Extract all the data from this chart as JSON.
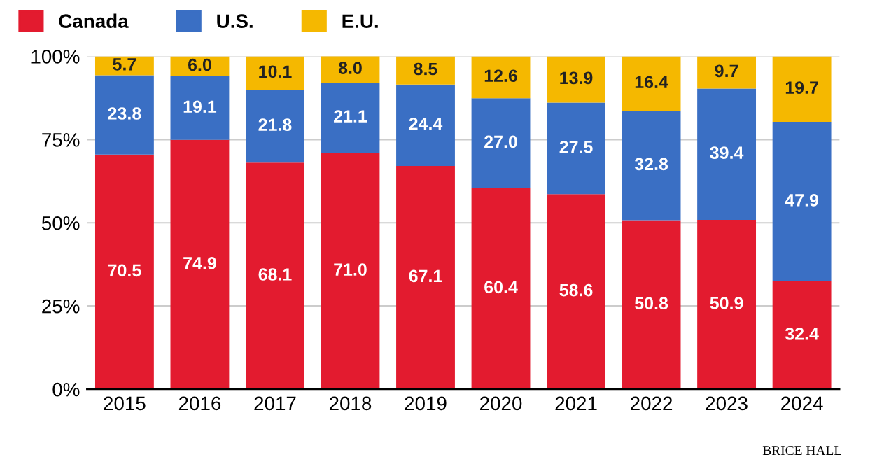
{
  "chart_data": {
    "type": "bar",
    "stacked": true,
    "categories": [
      "2015",
      "2016",
      "2017",
      "2018",
      "2019",
      "2020",
      "2021",
      "2022",
      "2023",
      "2024"
    ],
    "series": [
      {
        "name": "Canada",
        "color": "#e31b2f",
        "values": [
          70.5,
          74.9,
          68.1,
          71.0,
          67.1,
          60.4,
          58.6,
          50.8,
          50.9,
          32.4
        ],
        "value_labels": [
          "70.5",
          "74.9",
          "68.1",
          "71.0",
          "67.1",
          "60.4",
          "58.6",
          "50.8",
          "50.9",
          "32.4"
        ]
      },
      {
        "name": "U.S.",
        "color": "#3a6fc4",
        "values": [
          23.8,
          19.1,
          21.8,
          21.1,
          24.4,
          27.0,
          27.5,
          32.8,
          39.4,
          47.9
        ],
        "value_labels": [
          "23.8",
          "19.1",
          "21.8",
          "21.1",
          "24.4",
          "27.0",
          "27.5",
          "32.8",
          "39.4",
          "47.9"
        ]
      },
      {
        "name": "E.U.",
        "color": "#f5b800",
        "values": [
          5.7,
          6.0,
          10.1,
          8.0,
          8.5,
          12.6,
          13.9,
          16.4,
          9.7,
          19.7
        ],
        "value_labels": [
          "5.7",
          "6.0",
          "10.1",
          "8.0",
          "8.5",
          "12.6",
          "13.9",
          "16.4",
          "9.7",
          "19.7"
        ]
      }
    ],
    "ylim": [
      0,
      100
    ],
    "yticks": [
      {
        "value": 0,
        "label": "0%"
      },
      {
        "value": 25,
        "label": "25%"
      },
      {
        "value": 50,
        "label": "50%"
      },
      {
        "value": 75,
        "label": "75%"
      },
      {
        "value": 100,
        "label": "100%"
      }
    ],
    "grid": "y",
    "legend": "top left",
    "annotations": [
      "BRICE HALL"
    ]
  }
}
